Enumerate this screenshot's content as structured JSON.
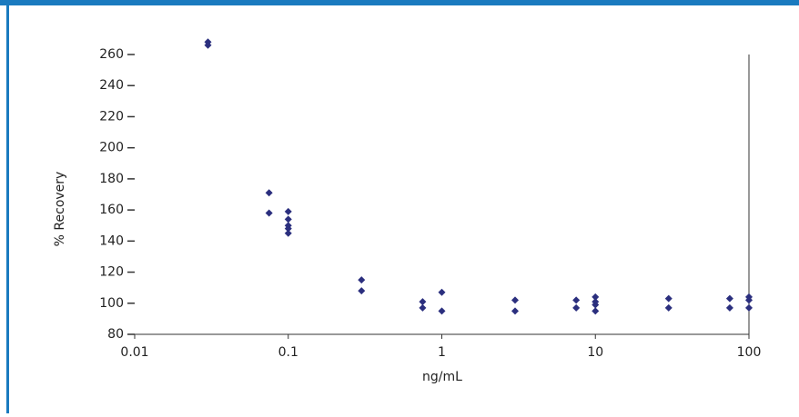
{
  "chart_data": {
    "type": "scatter",
    "x_label": "ng/mL",
    "y_label": "% Recovery",
    "x": [
      0.03,
      0.03,
      0.075,
      0.075,
      0.1,
      0.1,
      0.1,
      0.1,
      0.1,
      0.3,
      0.3,
      0.75,
      0.75,
      1,
      1,
      3,
      3,
      7.5,
      7.5,
      10,
      10,
      10,
      10,
      30,
      30,
      75,
      75,
      100,
      100,
      100
    ],
    "values": [
      268,
      266,
      171,
      158,
      159,
      154,
      150,
      148,
      145,
      115,
      108,
      101,
      97,
      107,
      95,
      102,
      95,
      102,
      97,
      104,
      101,
      99,
      95,
      103,
      97,
      103,
      97,
      104,
      102,
      97
    ],
    "color": "#2b2f7e",
    "xlim": [
      0.01,
      100
    ],
    "xticks": [
      0.01,
      0.1,
      1,
      10,
      100
    ],
    "xscale": "log",
    "ylim": [
      80,
      260
    ],
    "yticks": [
      80,
      100,
      120,
      140,
      160,
      180,
      200,
      220,
      240,
      260
    ]
  }
}
